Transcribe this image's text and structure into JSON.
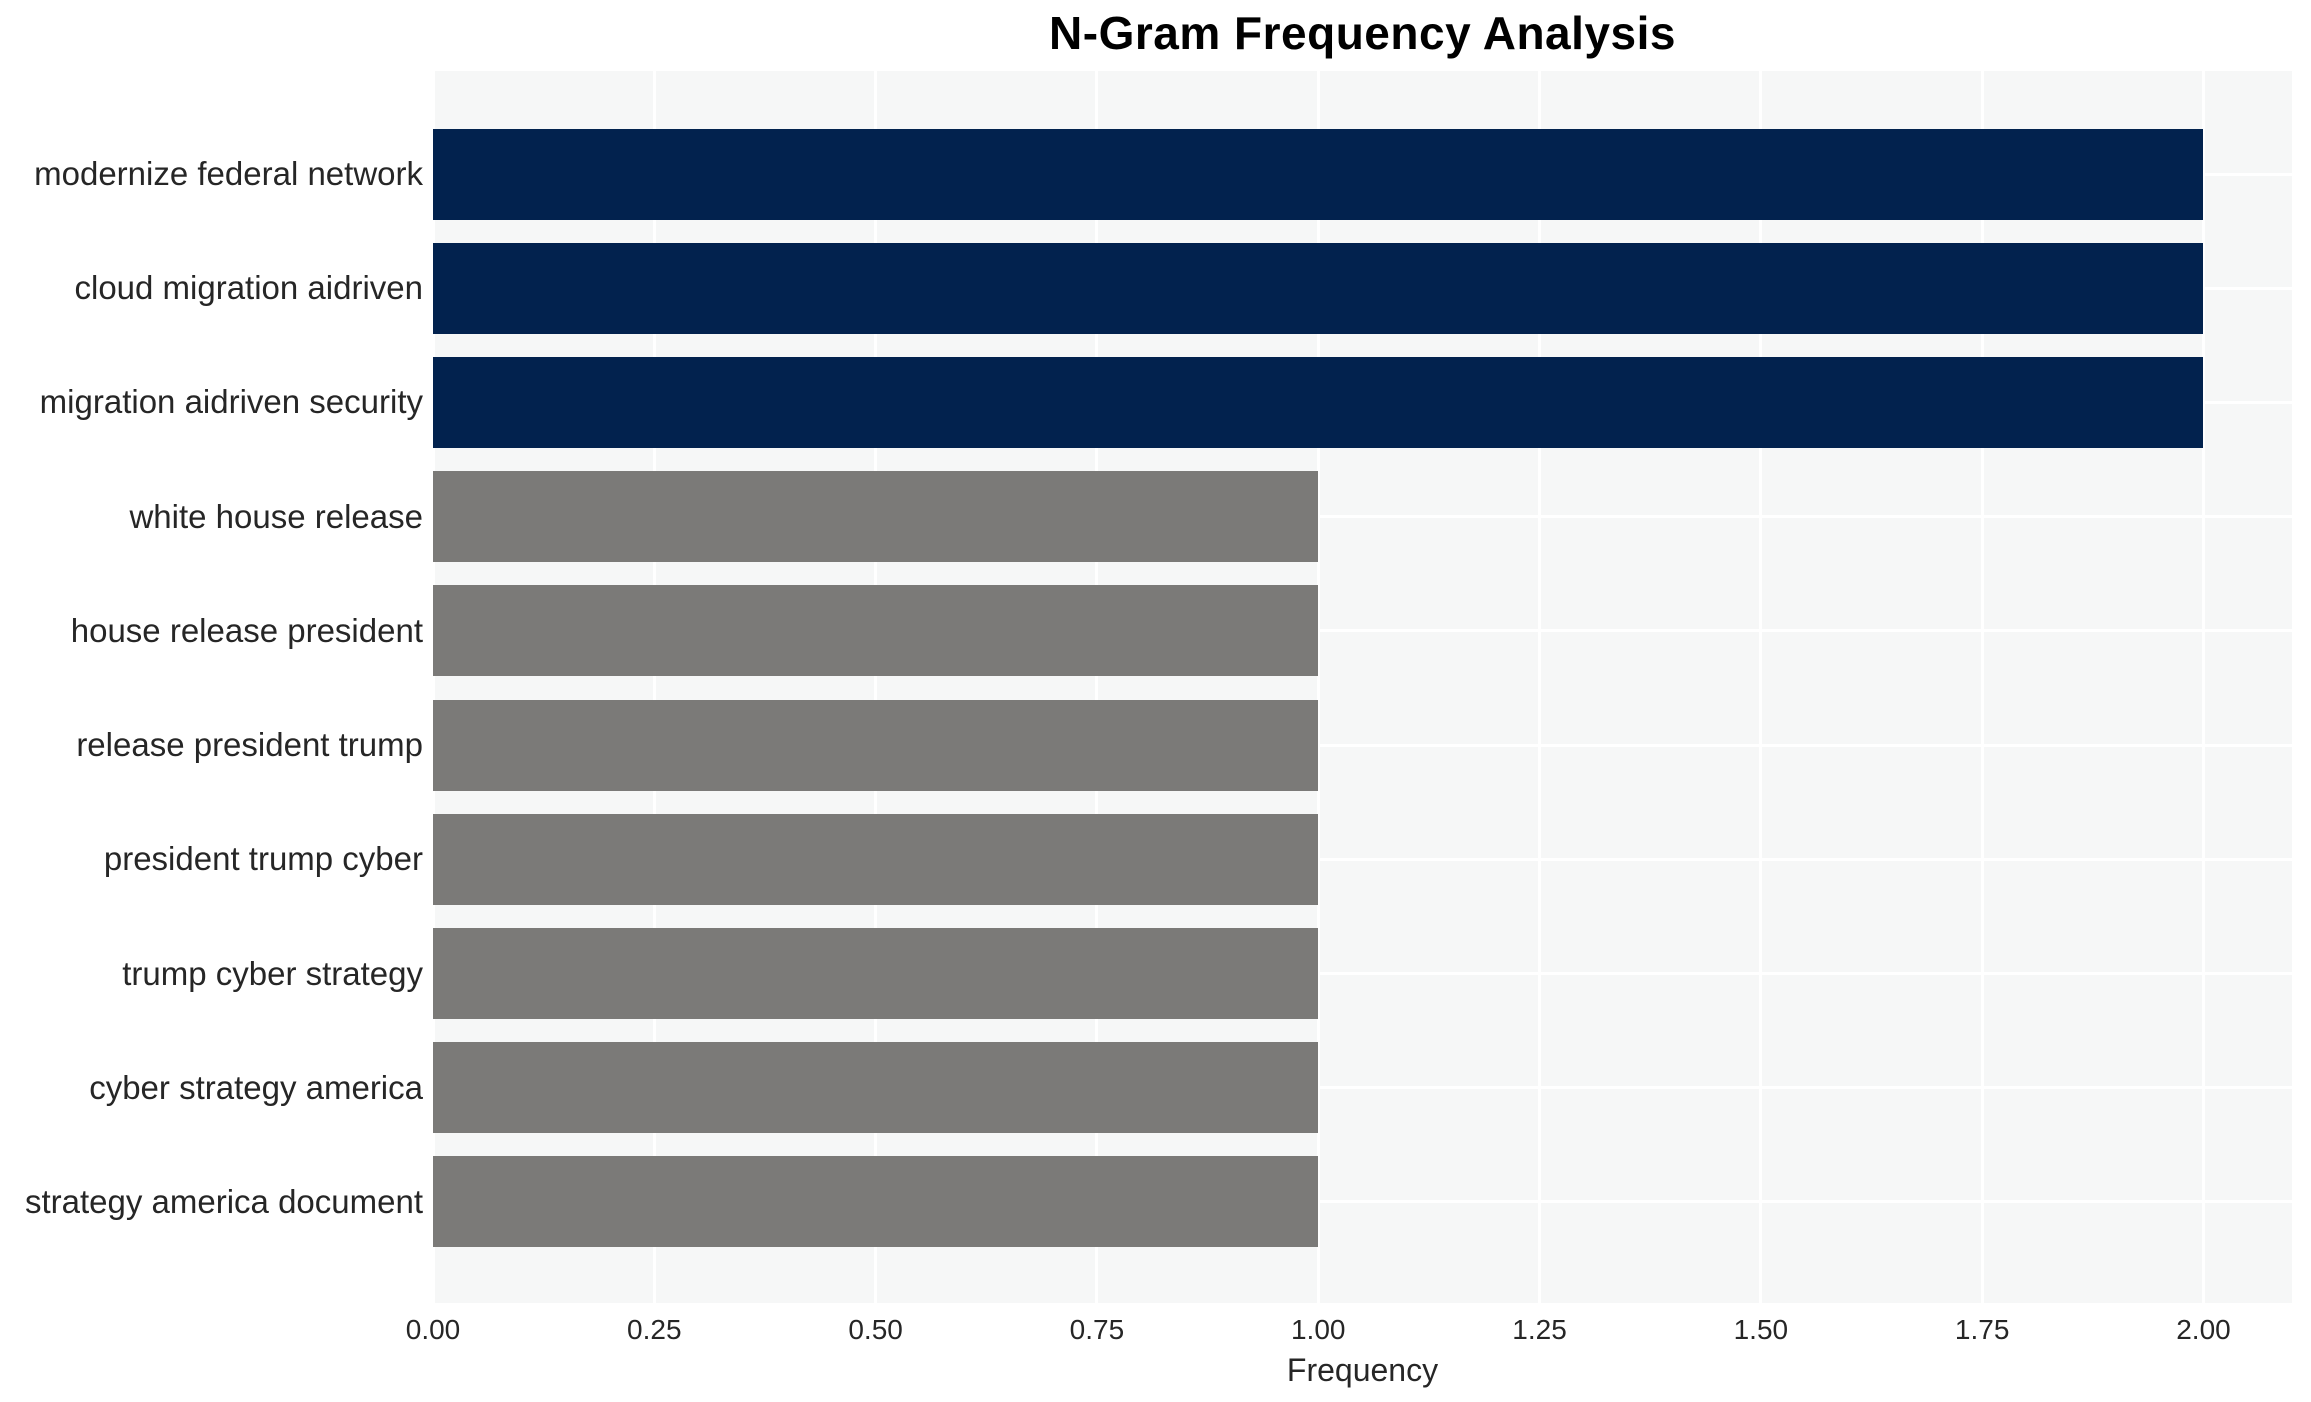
{
  "chart_data": {
    "type": "bar",
    "orientation": "horizontal",
    "title": "N-Gram Frequency Analysis",
    "xlabel": "Frequency",
    "ylabel": "",
    "categories": [
      "modernize federal network",
      "cloud migration aidriven",
      "migration aidriven security",
      "white house release",
      "house release president",
      "release president trump",
      "president trump cyber",
      "trump cyber strategy",
      "cyber strategy america",
      "strategy america document"
    ],
    "values": [
      2,
      2,
      2,
      1,
      1,
      1,
      1,
      1,
      1,
      1
    ],
    "bar_colors": [
      "#02224e",
      "#02224e",
      "#02224e",
      "#7b7a78",
      "#7b7a78",
      "#7b7a78",
      "#7b7a78",
      "#7b7a78",
      "#7b7a78",
      "#7b7a78"
    ],
    "xtick_labels": [
      "0.00",
      "0.25",
      "0.50",
      "0.75",
      "1.00",
      "1.25",
      "1.50",
      "1.75",
      "2.00"
    ],
    "xtick_values": [
      0,
      0.25,
      0.5,
      0.75,
      1.0,
      1.25,
      1.5,
      1.75,
      2.0
    ],
    "xlim": [
      0,
      2.1
    ],
    "grid": true,
    "legend": false,
    "colors": {
      "bar_highlight": "#02224e",
      "bar_default": "#7b7a78",
      "plot_bg": "#f6f7f7",
      "gridline": "#ffffff",
      "text": "#262626",
      "title_text": "#000000"
    }
  }
}
